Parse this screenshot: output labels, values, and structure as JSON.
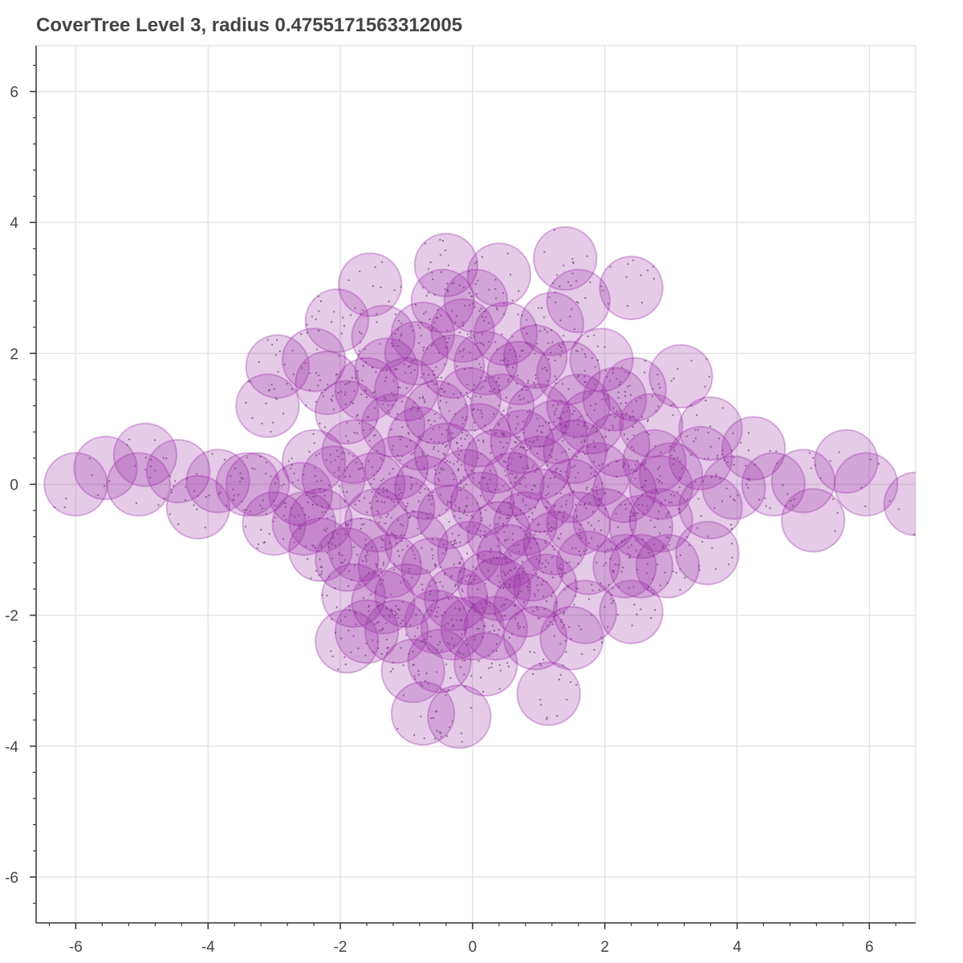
{
  "chart_data": {
    "type": "scatter",
    "title": "CoverTree Level 3, radius 0.4755171563312005",
    "xlabel": "",
    "ylabel": "",
    "xlim": [
      -6.6,
      6.7
    ],
    "ylim": [
      -6.7,
      6.7
    ],
    "grid": true,
    "x_ticks": [
      -6,
      -4,
      -2,
      0,
      2,
      4,
      6
    ],
    "y_ticks": [
      -6,
      -4,
      -2,
      0,
      2,
      4,
      6
    ],
    "x_tick_labels": [
      "-6",
      "-4",
      "-2",
      "0",
      "2",
      "4",
      "6"
    ],
    "y_tick_labels": [
      "-6",
      "-4",
      "-2",
      "0",
      "2",
      "4",
      "6"
    ],
    "circle_radius": 0.4755171563312005,
    "circle_fill": "#9B30A8",
    "circle_fill_alpha": 0.25,
    "circle_stroke": "#9B30A8",
    "point_color": "#555555",
    "grid_color": "#e5e5e5",
    "axis_color": "#333333",
    "centers": [
      [
        -6.0,
        0.0
      ],
      [
        -5.55,
        0.25
      ],
      [
        -5.05,
        0.0
      ],
      [
        -4.95,
        0.45
      ],
      [
        -4.45,
        0.2
      ],
      [
        -4.15,
        -0.35
      ],
      [
        -3.85,
        0.05
      ],
      [
        -3.25,
        0.0
      ],
      [
        -3.0,
        -0.6
      ],
      [
        -3.1,
        1.2
      ],
      [
        -2.95,
        1.8
      ],
      [
        -2.6,
        -0.15
      ],
      [
        -2.4,
        1.9
      ],
      [
        -2.4,
        0.35
      ],
      [
        -2.3,
        -0.55
      ],
      [
        -2.2,
        1.55
      ],
      [
        -2.1,
        0.1
      ],
      [
        -2.05,
        2.5
      ],
      [
        -1.9,
        1.1
      ],
      [
        -2.3,
        -1.0
      ],
      [
        -1.9,
        -1.15
      ],
      [
        -1.8,
        0.5
      ],
      [
        -1.8,
        -1.7
      ],
      [
        -1.55,
        3.05
      ],
      [
        -1.6,
        1.45
      ],
      [
        -1.5,
        0.0
      ],
      [
        -1.45,
        -0.55
      ],
      [
        -1.35,
        2.25
      ],
      [
        -1.3,
        1.75
      ],
      [
        -1.25,
        -1.25
      ],
      [
        -1.2,
        0.9
      ],
      [
        -1.15,
        0.25
      ],
      [
        -1.05,
        -0.35
      ],
      [
        -1.0,
        -1.7
      ],
      [
        -1.0,
        1.45
      ],
      [
        -0.85,
        2.0
      ],
      [
        -0.85,
        -0.9
      ],
      [
        -0.8,
        0.7
      ],
      [
        -0.75,
        2.3
      ],
      [
        -0.7,
        -0.05
      ],
      [
        -0.6,
        -1.3
      ],
      [
        -0.55,
        1.1
      ],
      [
        -0.45,
        2.8
      ],
      [
        -0.4,
        0.45
      ],
      [
        -0.35,
        -0.5
      ],
      [
        -0.3,
        1.8
      ],
      [
        -0.4,
        3.35
      ],
      [
        -0.25,
        -1.75
      ],
      [
        -0.15,
        2.35
      ],
      [
        -0.1,
        0.05
      ],
      [
        -0.05,
        1.3
      ],
      [
        -0.05,
        -1.05
      ],
      [
        0.05,
        2.8
      ],
      [
        0.1,
        0.75
      ],
      [
        0.15,
        -0.3
      ],
      [
        0.2,
        1.85
      ],
      [
        0.25,
        -1.5
      ],
      [
        0.35,
        0.35
      ],
      [
        0.4,
        3.2
      ],
      [
        0.4,
        -0.75
      ],
      [
        0.45,
        1.2
      ],
      [
        0.5,
        2.3
      ],
      [
        0.55,
        -1.1
      ],
      [
        0.6,
        0.0
      ],
      [
        0.7,
        1.7
      ],
      [
        0.75,
        0.65
      ],
      [
        0.8,
        -0.6
      ],
      [
        0.9,
        -1.3
      ],
      [
        0.95,
        1.95
      ],
      [
        1.0,
        0.25
      ],
      [
        1.0,
        1.05
      ],
      [
        1.05,
        -0.25
      ],
      [
        1.2,
        2.45
      ],
      [
        1.25,
        0.8
      ],
      [
        1.25,
        -0.9
      ],
      [
        1.4,
        3.45
      ],
      [
        1.45,
        1.7
      ],
      [
        1.5,
        -0.1
      ],
      [
        1.55,
        0.5
      ],
      [
        1.6,
        1.2
      ],
      [
        1.6,
        -0.6
      ],
      [
        1.6,
        2.8
      ],
      [
        1.75,
        -1.2
      ],
      [
        1.8,
        0.95
      ],
      [
        1.9,
        0.15
      ],
      [
        1.95,
        1.9
      ],
      [
        2.0,
        -0.55
      ],
      [
        2.15,
        1.3
      ],
      [
        2.2,
        0.6
      ],
      [
        2.3,
        -0.1
      ],
      [
        2.4,
        3.0
      ],
      [
        2.3,
        -1.25
      ],
      [
        2.45,
        1.45
      ],
      [
        2.55,
        -0.65
      ],
      [
        2.7,
        0.9
      ],
      [
        2.75,
        0.35
      ],
      [
        2.85,
        -0.05
      ],
      [
        2.85,
        -0.55
      ],
      [
        3.0,
        0.15
      ],
      [
        3.15,
        1.65
      ],
      [
        3.45,
        0.4
      ],
      [
        3.6,
        0.85
      ],
      [
        3.6,
        -0.35
      ],
      [
        3.55,
        -1.05
      ],
      [
        2.95,
        -1.25
      ],
      [
        2.55,
        -1.25
      ],
      [
        3.95,
        -0.05
      ],
      [
        4.25,
        0.55
      ],
      [
        4.55,
        0.0
      ],
      [
        5.0,
        0.05
      ],
      [
        5.15,
        -0.55
      ],
      [
        5.65,
        0.35
      ],
      [
        5.95,
        0.0
      ],
      [
        6.7,
        -0.3
      ],
      [
        2.4,
        -1.95
      ],
      [
        1.7,
        -1.95
      ],
      [
        1.5,
        -2.35
      ],
      [
        1.15,
        -3.2
      ],
      [
        0.95,
        -2.35
      ],
      [
        0.8,
        -1.85
      ],
      [
        0.4,
        -1.6
      ],
      [
        0.2,
        -2.75
      ],
      [
        0.0,
        -2.2
      ],
      [
        -0.2,
        -3.55
      ],
      [
        -0.5,
        -2.7
      ],
      [
        -0.55,
        -2.1
      ],
      [
        -0.75,
        -3.5
      ],
      [
        -0.9,
        -2.85
      ],
      [
        -1.15,
        -2.25
      ],
      [
        -1.6,
        -2.25
      ],
      [
        -1.9,
        -2.4
      ],
      [
        -1.7,
        -1.0
      ],
      [
        -0.3,
        -2.2
      ],
      [
        0.35,
        -2.2
      ],
      [
        1.1,
        -1.55
      ],
      [
        -1.35,
        -1.8
      ],
      [
        -2.55,
        -0.6
      ],
      [
        -3.4,
        0.0
      ]
    ]
  }
}
